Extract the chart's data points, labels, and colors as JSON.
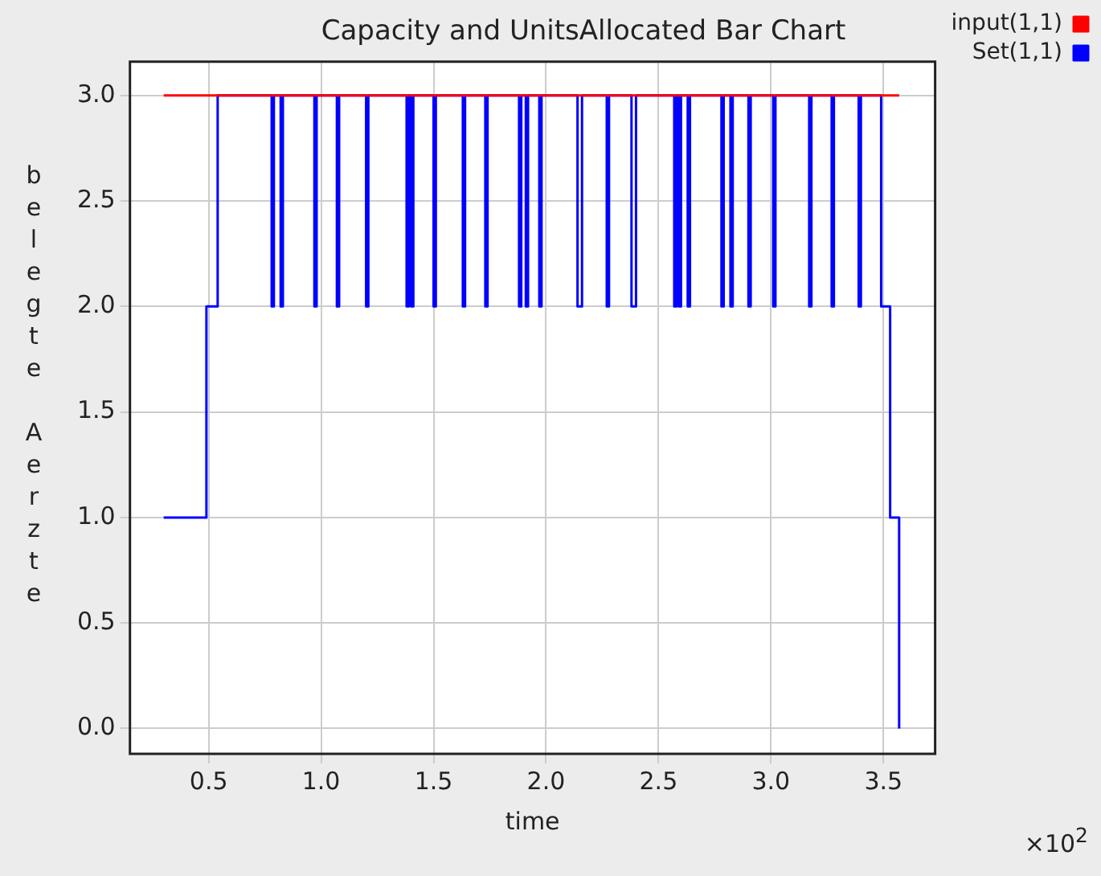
{
  "chart_data": {
    "type": "step",
    "title": "Capacity and UnitsAllocated Bar Chart",
    "xlabel": "time",
    "ylabel": "belegte Aerzte",
    "annotations": [
      "×10$^{2}$"
    ],
    "series": [
      {
        "name": "input(1,1)",
        "color": "#ff0000",
        "x": [
          0.3,
          3.57
        ],
        "values": [
          3,
          3
        ]
      },
      {
        "name": "Set(1,1)",
        "color": "#0000ff",
        "x": [
          0.3,
          0.49,
          0.54,
          0.78,
          0.79,
          0.82,
          0.83,
          0.97,
          0.98,
          1.07,
          1.08,
          1.2,
          1.21,
          1.38,
          1.39,
          1.4,
          1.41,
          1.5,
          1.51,
          1.63,
          1.64,
          1.73,
          1.74,
          1.88,
          1.89,
          1.91,
          1.92,
          1.97,
          1.98,
          2.14,
          2.16,
          2.27,
          2.28,
          2.38,
          2.4,
          2.57,
          2.58,
          2.59,
          2.6,
          2.63,
          2.64,
          2.78,
          2.79,
          2.82,
          2.83,
          2.9,
          2.91,
          3.01,
          3.02,
          3.17,
          3.18,
          3.27,
          3.28,
          3.39,
          3.4,
          3.49,
          3.53,
          3.57
        ],
        "values": [
          1,
          2,
          3,
          2,
          3,
          2,
          3,
          2,
          3,
          2,
          3,
          2,
          3,
          2,
          3,
          2,
          3,
          2,
          3,
          2,
          3,
          2,
          3,
          2,
          3,
          2,
          3,
          2,
          3,
          2,
          3,
          2,
          3,
          2,
          3,
          2,
          3,
          2,
          3,
          2,
          3,
          2,
          3,
          2,
          3,
          2,
          3,
          2,
          3,
          2,
          3,
          2,
          3,
          2,
          3,
          2,
          1,
          0
        ]
      }
    ],
    "xlim": [
      0.15,
      3.73
    ],
    "ylim": [
      -0.12,
      3.16
    ],
    "xticks": [
      0.5,
      {
        "value": 1,
        "label": "1.0"
      },
      1.5,
      {
        "value": 2,
        "label": "2.0"
      },
      2.5,
      {
        "value": 3,
        "label": "3.0"
      },
      3.5
    ],
    "yticks": [
      {
        "value": 0,
        "label": "0.0"
      },
      0.5,
      {
        "value": 1,
        "label": "1.0"
      },
      1.5,
      {
        "value": 2,
        "label": "2.0"
      },
      2.5,
      {
        "value": 3,
        "label": "3.0"
      }
    ],
    "grid": true,
    "legend": "top right",
    "marker": "none",
    "line_style": "solid"
  }
}
